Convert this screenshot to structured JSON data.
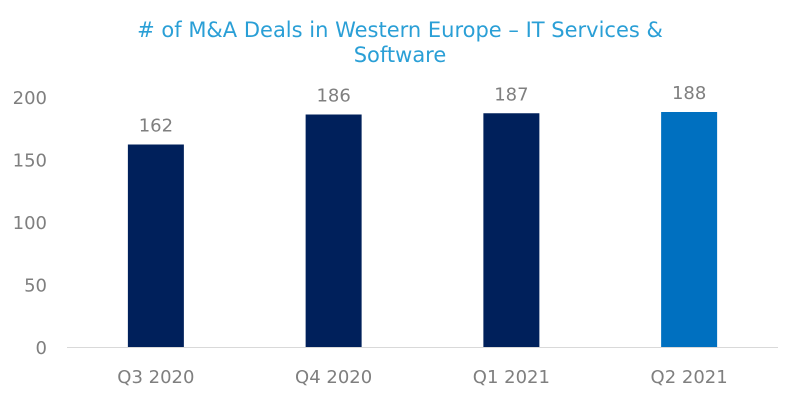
{
  "chart_data": {
    "type": "bar",
    "title": "# of M&A Deals in Western Europe – IT Services & Software",
    "xlabel": "",
    "ylabel": "",
    "categories": [
      "Q3 2020",
      "Q4 2020",
      "Q1 2021",
      "Q2 2021"
    ],
    "values": [
      162,
      186,
      187,
      188
    ],
    "data_labels": [
      "162",
      "186",
      "187",
      "188"
    ],
    "bar_colors": [
      "#00205b",
      "#00205b",
      "#00205b",
      "#0070c0"
    ],
    "ylim": [
      0,
      200
    ],
    "yticks": [
      0,
      50,
      100,
      150,
      200
    ],
    "grid": false,
    "legend": "none"
  },
  "colors": {
    "title": "#2a9fd6",
    "axis_text": "#7f7f7f",
    "axis_line": "#d9d9d9"
  }
}
